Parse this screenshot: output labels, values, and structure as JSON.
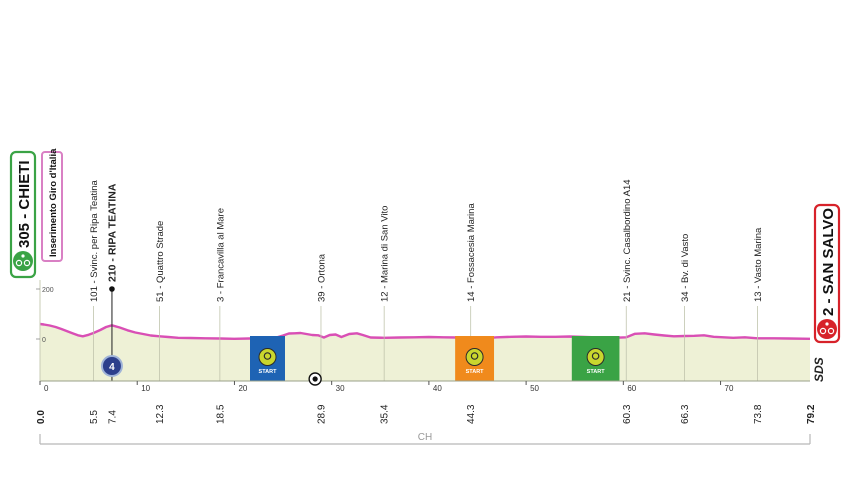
{
  "chart_data": {
    "type": "area",
    "title": "",
    "xlabel": "",
    "ylabel": "",
    "xlim": [
      0,
      79.2
    ],
    "ylim": [
      0,
      200
    ],
    "y_ticks": [
      {
        "value": 200,
        "label": "200"
      },
      {
        "value": 0,
        "label": "0"
      }
    ],
    "x_ticks": [
      "0",
      "10",
      "20",
      "30",
      "40",
      "50",
      "60",
      "70"
    ],
    "grid": false,
    "colors": {
      "profile_line": "#d94fb5",
      "profile_fill": "#eef1d6",
      "start_box": "#3aa345",
      "finish_box": "#d7222a",
      "gpm_box": "#d980c4",
      "kom_marker": "#2c3f8c",
      "intermediate_blue": "#1e63b4",
      "intermediate_orange": "#f08a1c",
      "intermediate_green": "#3aa345"
    },
    "profile": {
      "x": [
        0,
        0.4,
        1,
        1.6,
        2.2,
        2.8,
        3.4,
        3.9,
        4.4,
        5,
        5.5,
        6.2,
        6.8,
        7.4,
        8.2,
        9,
        9.8,
        10.6,
        11.4,
        12.3,
        13.2,
        14.2,
        15.5,
        17,
        18.5,
        20,
        21.5,
        23,
        24.4,
        25,
        25.6,
        26.2,
        26.8,
        27.4,
        28,
        28.6,
        29.2,
        29.8,
        30.4,
        31,
        31.8,
        32.6,
        33.2,
        34,
        35.4,
        37,
        38.5,
        40,
        41.5,
        43,
        44.3,
        45.5,
        47,
        48.5,
        50,
        51.5,
        53,
        54.5,
        56,
        57.5,
        59,
        60.3,
        61.2,
        62.2,
        63.2,
        64.2,
        65.2,
        66.3,
        67.3,
        68.3,
        69.3,
        70.3,
        71.3,
        72.5,
        73.8,
        75.5,
        77,
        79.2
      ],
      "y": [
        60,
        58,
        54,
        48,
        40,
        31,
        22,
        15,
        11,
        17,
        24,
        36,
        48,
        55,
        46,
        35,
        26,
        20,
        14,
        11,
        8,
        5,
        4,
        3,
        2,
        1,
        2,
        3,
        7,
        14,
        22,
        23,
        24,
        20,
        16,
        15,
        6,
        16,
        18,
        8,
        20,
        23,
        16,
        6,
        5,
        6,
        7,
        8,
        7,
        6,
        3,
        3,
        7,
        9,
        10,
        9,
        9,
        10,
        8,
        6,
        5,
        7,
        21,
        23,
        18,
        14,
        11,
        12,
        13,
        15,
        9,
        7,
        5,
        7,
        3,
        3,
        2,
        1
      ]
    },
    "start": {
      "distance": "0.0",
      "altitude": "305",
      "name": "CHIETI",
      "note": "Inserimento Giro d'Italia"
    },
    "finish": {
      "distance": "79.2",
      "altitude": "2",
      "name": "SAN SALVO"
    },
    "waypoints": [
      {
        "km": 5.5,
        "distance": "5.5",
        "label": "101 - Svinc. per Ripa Teatina",
        "bold": false,
        "profile_y": 22
      },
      {
        "km": 7.4,
        "distance": "7.4",
        "label": "210 - RIPA TEATINA",
        "bold": true,
        "profile_y": 55
      },
      {
        "km": 12.3,
        "distance": "12.3",
        "label": "51 - Quattro Strade",
        "bold": false,
        "profile_y": 11
      },
      {
        "km": 18.5,
        "distance": "18.5",
        "label": "3 - Francavilla al Mare",
        "bold": false,
        "profile_y": 2
      },
      {
        "km": 28.9,
        "distance": "28.9",
        "label": "39 - Ortona",
        "bold": false,
        "profile_y": 12
      },
      {
        "km": 35.4,
        "distance": "35.4",
        "label": "12 - Marina di San Vito",
        "bold": false,
        "profile_y": 5
      },
      {
        "km": 44.3,
        "distance": "44.3",
        "label": "14 - Fossacesia Marina",
        "bold": false,
        "profile_y": 3
      },
      {
        "km": 60.3,
        "distance": "60.3",
        "label": "21 - Svinc. Casalbordino A14",
        "bold": false,
        "profile_y": 7
      },
      {
        "km": 66.3,
        "distance": "66.3",
        "label": "34 - Bv. di Vasto",
        "bold": false,
        "profile_y": 12
      },
      {
        "km": 73.8,
        "distance": "73.8",
        "label": "13 - Vasto Marina",
        "bold": false,
        "profile_y": 3
      }
    ],
    "intermediates": [
      {
        "from": 21.6,
        "to": 25.2,
        "color": "#1e63b4",
        "label": "START"
      },
      {
        "from": 42.7,
        "to": 46.7,
        "color": "#f08a1c",
        "label": "START"
      },
      {
        "from": 54.7,
        "to": 59.6,
        "color": "#3aa345",
        "label": "START"
      }
    ],
    "kom": {
      "km": 7.4,
      "number": "4"
    },
    "marker_km": 28.3,
    "region_label": "CH",
    "logo": "SDS"
  }
}
